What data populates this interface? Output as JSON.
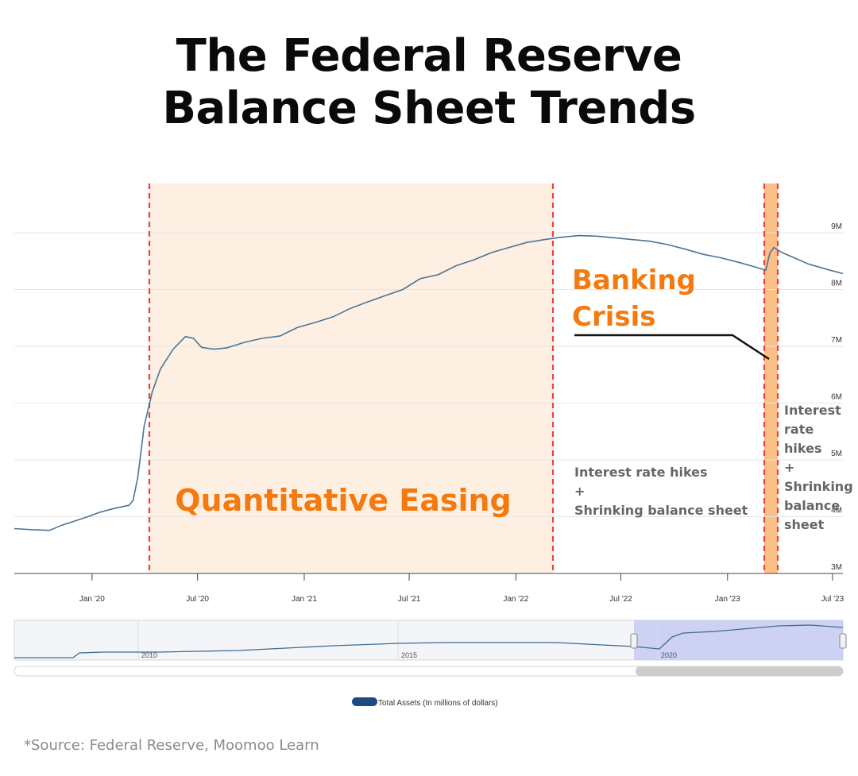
{
  "title": {
    "line1": "The Federal Reserve",
    "line2": "Balance Sheet Trends"
  },
  "source_note": "*Source: Federal Reserve, Moomoo Learn",
  "annotations": {
    "qe_label": "Quantitative Easing",
    "banking_crisis": [
      "Banking",
      "Crisis"
    ],
    "hikes_main": [
      "Interest rate hikes",
      "+",
      "Shrinking balance sheet"
    ],
    "hikes_narrow": [
      "Interest",
      "rate",
      "hikes",
      "+",
      "Shrinking",
      "balance",
      "sheet"
    ]
  },
  "colors": {
    "line": "#4a7497",
    "qe_shade": "#fdf0e3",
    "crisis_shade": "#fbc088",
    "dashed": "#ee4040",
    "accent_orange": "#f47a10",
    "overview_selection": "#c5cbf3",
    "legend_swatch": "#1d4a80"
  },
  "chart_data": {
    "type": "line",
    "title": "",
    "xlabel": "",
    "ylabel": "",
    "x_range": [
      "2019-08-20",
      "2023-07-19"
    ],
    "ylim": [
      3000000,
      9000000
    ],
    "y_ticks": [
      {
        "value": 3000000,
        "label": "3M"
      },
      {
        "value": 4000000,
        "label": "4M"
      },
      {
        "value": 5000000,
        "label": "5M"
      },
      {
        "value": 6000000,
        "label": "6M"
      },
      {
        "value": 7000000,
        "label": "7M"
      },
      {
        "value": 8000000,
        "label": "8M"
      },
      {
        "value": 9000000,
        "label": "9M"
      }
    ],
    "x_ticks": [
      {
        "date": "2020-01-01",
        "label": "Jan '20"
      },
      {
        "date": "2020-07-01",
        "label": "Jul '20"
      },
      {
        "date": "2021-01-01",
        "label": "Jan '21"
      },
      {
        "date": "2021-07-01",
        "label": "Jul '21"
      },
      {
        "date": "2022-01-01",
        "label": "Jan '22"
      },
      {
        "date": "2022-07-01",
        "label": "Jul '22"
      },
      {
        "date": "2023-01-01",
        "label": "Jan '23"
      },
      {
        "date": "2023-07-01",
        "label": "Jul '23"
      }
    ],
    "series": [
      {
        "name": "Total Assets (In millions of dollars)",
        "points": [
          [
            "2019-08-20",
            3790000
          ],
          [
            "2019-09-20",
            3770000
          ],
          [
            "2019-10-20",
            3760000
          ],
          [
            "2019-11-10",
            3850000
          ],
          [
            "2019-12-01",
            3920000
          ],
          [
            "2019-12-25",
            4000000
          ],
          [
            "2020-01-15",
            4080000
          ],
          [
            "2020-02-10",
            4150000
          ],
          [
            "2020-03-05",
            4200000
          ],
          [
            "2020-03-12",
            4290000
          ],
          [
            "2020-03-20",
            4700000
          ],
          [
            "2020-03-31",
            5600000
          ],
          [
            "2020-04-14",
            6200000
          ],
          [
            "2020-04-28",
            6600000
          ],
          [
            "2020-05-20",
            6950000
          ],
          [
            "2020-06-10",
            7170000
          ],
          [
            "2020-06-24",
            7140000
          ],
          [
            "2020-07-08",
            6980000
          ],
          [
            "2020-07-29",
            6950000
          ],
          [
            "2020-08-20",
            6970000
          ],
          [
            "2020-09-20",
            7070000
          ],
          [
            "2020-10-20",
            7140000
          ],
          [
            "2020-11-20",
            7180000
          ],
          [
            "2020-12-20",
            7330000
          ],
          [
            "2021-01-20",
            7420000
          ],
          [
            "2021-02-20",
            7520000
          ],
          [
            "2021-03-20",
            7660000
          ],
          [
            "2021-04-20",
            7780000
          ],
          [
            "2021-05-20",
            7890000
          ],
          [
            "2021-06-20",
            8000000
          ],
          [
            "2021-07-20",
            8190000
          ],
          [
            "2021-08-20",
            8260000
          ],
          [
            "2021-09-20",
            8420000
          ],
          [
            "2021-10-20",
            8520000
          ],
          [
            "2021-11-20",
            8650000
          ],
          [
            "2021-12-20",
            8740000
          ],
          [
            "2022-01-20",
            8830000
          ],
          [
            "2022-02-20",
            8880000
          ],
          [
            "2022-03-20",
            8920000
          ],
          [
            "2022-04-20",
            8950000
          ],
          [
            "2022-05-20",
            8940000
          ],
          [
            "2022-06-20",
            8910000
          ],
          [
            "2022-07-20",
            8880000
          ],
          [
            "2022-08-20",
            8850000
          ],
          [
            "2022-09-20",
            8790000
          ],
          [
            "2022-10-20",
            8710000
          ],
          [
            "2022-11-20",
            8620000
          ],
          [
            "2022-12-20",
            8560000
          ],
          [
            "2023-01-20",
            8480000
          ],
          [
            "2023-02-20",
            8390000
          ],
          [
            "2023-03-08",
            8340000
          ],
          [
            "2023-03-15",
            8640000
          ],
          [
            "2023-03-22",
            8740000
          ],
          [
            "2023-04-05",
            8650000
          ],
          [
            "2023-04-26",
            8560000
          ],
          [
            "2023-05-20",
            8450000
          ],
          [
            "2023-06-20",
            8360000
          ],
          [
            "2023-07-19",
            8280000
          ]
        ]
      }
    ],
    "overview": {
      "tick_labels": [
        "2010",
        "2015",
        "2020"
      ]
    },
    "legend": {
      "position": "bottom-center"
    }
  }
}
